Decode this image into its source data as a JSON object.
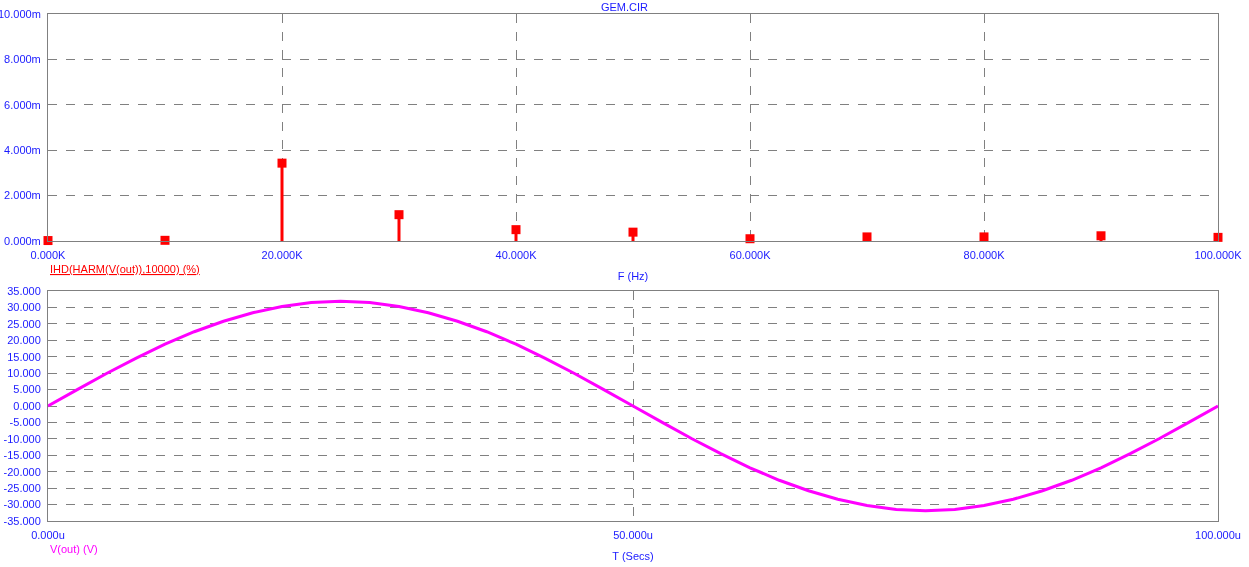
{
  "chart_data": [
    {
      "type": "lollipop",
      "title": "GEM.CIR",
      "xlabel": "F (Hz)",
      "marker": "square",
      "grid": true,
      "x": [
        0,
        10000,
        20000,
        30000,
        40000,
        50000,
        60000,
        70000,
        80000,
        90000,
        100000
      ],
      "series": [
        {
          "name": "IHD(HARM(V(out)),10000) (%)",
          "color": "#ff0000",
          "values": [
            0.02,
            0.03,
            3.43,
            1.16,
            0.5,
            0.39,
            0.1,
            0.18,
            0.18,
            0.23,
            0.16
          ]
        }
      ],
      "xlim": [
        0,
        100000
      ],
      "xticks": [
        {
          "value": 0,
          "label": "0.000K"
        },
        {
          "value": 20000,
          "label": "20.000K"
        },
        {
          "value": 40000,
          "label": "40.000K"
        },
        {
          "value": 60000,
          "label": "60.000K"
        },
        {
          "value": 80000,
          "label": "80.000K"
        },
        {
          "value": 100000,
          "label": "100.000K"
        }
      ],
      "ylim": [
        0,
        10
      ],
      "yticks": [
        {
          "value": 0,
          "label": "0.000m"
        },
        {
          "value": 2,
          "label": "2.000m"
        },
        {
          "value": 4,
          "label": "4.000m"
        },
        {
          "value": 6,
          "label": "6.000m"
        },
        {
          "value": 8,
          "label": "8.000m"
        },
        {
          "value": 10,
          "label": "10.000m"
        }
      ]
    },
    {
      "type": "line",
      "xlabel": "T (Secs)",
      "grid": true,
      "marker": "none",
      "x": [
        0,
        2.5,
        5,
        7.5,
        10,
        12.5,
        15,
        17.5,
        20,
        22.5,
        25,
        27.5,
        30,
        32.5,
        35,
        37.5,
        40,
        42.5,
        45,
        47.5,
        50,
        52.5,
        55,
        57.5,
        60,
        62.5,
        65,
        67.5,
        70,
        72.5,
        75,
        77.5,
        80,
        82.5,
        85,
        87.5,
        90,
        92.5,
        95,
        97.5,
        100
      ],
      "series": [
        {
          "name": "V(out) (V)",
          "color": "#ff00ff",
          "values": [
            0,
            5.0,
            9.9,
            14.5,
            18.8,
            22.6,
            25.8,
            28.4,
            30.3,
            31.5,
            31.9,
            31.5,
            30.3,
            28.4,
            25.8,
            22.6,
            18.8,
            14.5,
            9.9,
            5.0,
            0,
            -5.0,
            -9.9,
            -14.5,
            -18.8,
            -22.6,
            -25.8,
            -28.4,
            -30.3,
            -31.5,
            -31.9,
            -31.5,
            -30.3,
            -28.4,
            -25.8,
            -22.6,
            -18.8,
            -14.5,
            -9.9,
            -5.0,
            0
          ]
        }
      ],
      "xlim": [
        0,
        100
      ],
      "xticks": [
        {
          "value": 0,
          "label": "0.000u"
        },
        {
          "value": 50,
          "label": "50.000u"
        },
        {
          "value": 100,
          "label": "100.000u"
        }
      ],
      "ylim": [
        -35,
        35
      ],
      "yticks": [
        {
          "value": 35,
          "label": "35.000"
        },
        {
          "value": 30,
          "label": "30.000"
        },
        {
          "value": 25,
          "label": "25.000"
        },
        {
          "value": 20,
          "label": "20.000"
        },
        {
          "value": 15,
          "label": "15.000"
        },
        {
          "value": 10,
          "label": "10.000"
        },
        {
          "value": 5,
          "label": "5.000"
        },
        {
          "value": 0,
          "label": "0.000"
        },
        {
          "value": -5,
          "label": "-5.000"
        },
        {
          "value": -10,
          "label": "-10.000"
        },
        {
          "value": -15,
          "label": "-15.000"
        },
        {
          "value": -20,
          "label": "-20.000"
        },
        {
          "value": -25,
          "label": "-25.000"
        },
        {
          "value": -30,
          "label": "-30.000"
        },
        {
          "value": -35,
          "label": "-35.000"
        }
      ]
    }
  ]
}
